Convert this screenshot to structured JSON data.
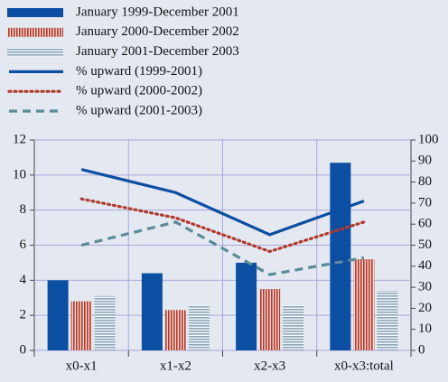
{
  "chart_data": {
    "type": "combo",
    "categories": [
      "x0-x1",
      "x1-x2",
      "x2-x3",
      "x0-x3:total"
    ],
    "series": [
      {
        "name": "January 1999-December 2001",
        "kind": "bar",
        "pattern": "solid",
        "color": "#0b4ea2",
        "values": [
          4.0,
          4.4,
          5.0,
          10.7
        ]
      },
      {
        "name": "January 2000-December 2002",
        "kind": "bar",
        "pattern": "vertical-stripes",
        "color": "#b03a2e",
        "values": [
          2.8,
          2.3,
          3.5,
          5.2
        ]
      },
      {
        "name": "January 2001-December 2003",
        "kind": "bar",
        "pattern": "horizontal-stripes",
        "color": "#8ea6b8",
        "values": [
          3.1,
          2.6,
          2.6,
          3.4
        ]
      },
      {
        "name": "% upward (1999-2001)",
        "kind": "line",
        "style": "solid",
        "axis": "y2",
        "color": "#0b4ea2",
        "values": [
          86,
          75,
          55,
          71
        ]
      },
      {
        "name": "% upward (2000-2002)",
        "kind": "line",
        "style": "dotted",
        "axis": "y2",
        "color": "#b03a2e",
        "values": [
          72,
          63,
          47,
          61
        ]
      },
      {
        "name": "% upward (2001-2003)",
        "kind": "line",
        "style": "dashed",
        "axis": "y2",
        "color": "#5b8c98",
        "values": [
          50,
          61,
          36,
          44
        ]
      }
    ],
    "ylim": [
      0,
      12
    ],
    "yticks": [
      0,
      2,
      4,
      6,
      8,
      10,
      12
    ],
    "y2lim": [
      0,
      100
    ],
    "y2ticks": [
      0,
      10,
      20,
      30,
      40,
      50,
      60,
      70,
      80,
      90,
      100
    ],
    "grid": true
  }
}
